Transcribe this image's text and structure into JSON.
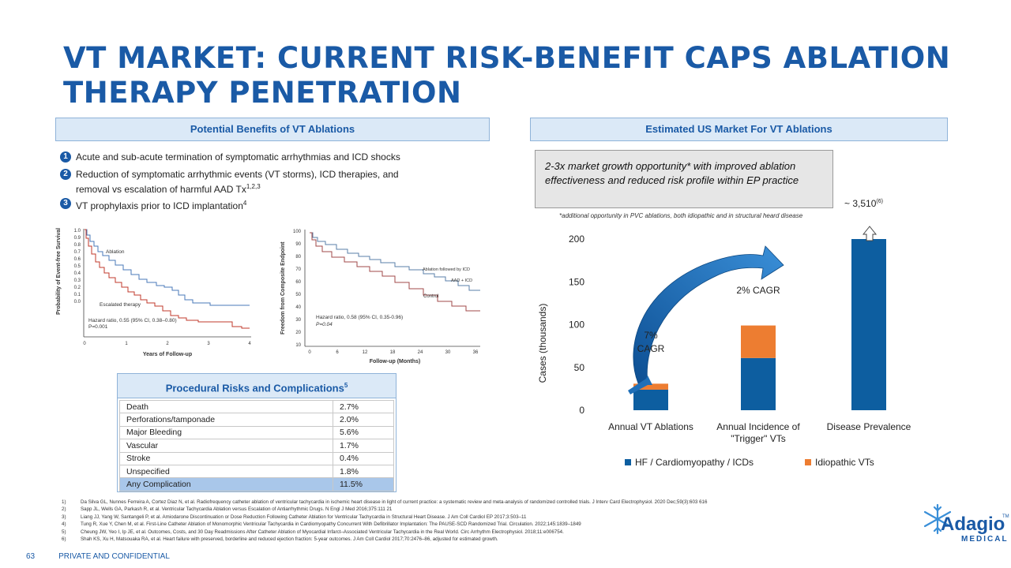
{
  "title": "VT MARKET: CURRENT RISK-BENEFIT CAPS ABLATION THERAPY PENETRATION",
  "left_header": "Potential Benefits of VT Ablations",
  "right_header": "Estimated US Market For VT Ablations",
  "benefits": [
    {
      "num": "1",
      "text": "Acute and sub-acute termination of symptomatic arrhythmias and ICD shocks",
      "sup": ""
    },
    {
      "num": "2",
      "text": "Reduction of symptomatic arrhythmic events (VT storms), ICD therapies, and removal vs escalation of harmful AAD Tx",
      "sup": "1,2,3"
    },
    {
      "num": "3",
      "text": "VT prophylaxis prior to ICD implantation",
      "sup": "4"
    }
  ],
  "km1": {
    "y_title": "Probability of Event-free Survival",
    "x_title": "Years of Follow-up",
    "y_ticks": [
      "1.0",
      "0.9",
      "0.8",
      "0.7",
      "0.6",
      "0.5",
      "0.4",
      "0.3",
      "0.2",
      "0.1",
      "0.0"
    ],
    "x_ticks": [
      "0",
      "1",
      "2",
      "3",
      "4"
    ],
    "label_a": "Ablation",
    "label_b": "Escalated therapy",
    "hr": "Hazard ratio, 0.55 (95% CI, 0.38–0.80)",
    "p": "P=0.001"
  },
  "km2": {
    "y_title": "Freedom from Composite Endpoint",
    "x_title": "Follow-up (Months)",
    "y_ticks": [
      "100",
      "90",
      "80",
      "70",
      "60",
      "50",
      "40",
      "30",
      "20",
      "10"
    ],
    "x_ticks": [
      "0",
      "6",
      "12",
      "18",
      "24",
      "30",
      "36"
    ],
    "label_a": "Ablation followed by ICD",
    "label_a2": "AAD + ICD",
    "label_b": "Control",
    "hr": "Hazard ratio, 0.58 (95% CI, 0.35-0.96)",
    "p": "P=0.04"
  },
  "risks": {
    "title": "Procedural Risks and Complications",
    "title_sup": "5",
    "rows": [
      {
        "label": "Death",
        "value": "2.7%"
      },
      {
        "label": "Perforations/tamponade",
        "value": "2.0%"
      },
      {
        "label": "Major Bleeding",
        "value": "5.6%"
      },
      {
        "label": "Vascular",
        "value": "1.7%"
      },
      {
        "label": "Stroke",
        "value": "0.4%"
      },
      {
        "label": "Unspecified",
        "value": "1.8%"
      },
      {
        "label": "Any Complication",
        "value": "11.5%"
      }
    ]
  },
  "callout": "2-3x market growth opportunity* with improved ablation effectiveness and reduced risk profile within EP practice",
  "callout_note": "*additional opportunity in PVC ablations, both idiopathic and in structural heard disease",
  "chart_data": {
    "type": "bar",
    "stacked": true,
    "categories": [
      "Annual VT Ablations",
      "Annual Incidence of \"Trigger\" VTs",
      "Disease Prevalence"
    ],
    "series": [
      {
        "name": "HF / Cardiomyopathy / ICDs",
        "values": [
          24,
          61,
          200
        ],
        "color": "#0d5ea0"
      },
      {
        "name": "Idiopathic VTs",
        "values": [
          7,
          38,
          0
        ],
        "color": "#ed7d31"
      }
    ],
    "ylabel": "Cases (thousands)",
    "ylim": [
      0,
      200
    ],
    "y_ticks": [
      0,
      50,
      100,
      150,
      200
    ],
    "annotations": {
      "cagr1_line1": "7%",
      "cagr1_line2": "CAGR",
      "cagr2": "2% CAGR",
      "prevalence": "~ 3,510",
      "prevalence_sup": "(6)"
    },
    "legend_position": "bottom"
  },
  "references": [
    {
      "n": "1)",
      "text": "Da Silva GL, Nunnes Ferreira A, Cortez Diaz N, et al. Radiofrequency catheter ablation of ventricular tachycardia in ischemic heart disease in light of current practice: a systematic review and meta-analysis of randomized controlled trials. J Interv Card Electrophysiol. 2020 Dec;59(3):603 616"
    },
    {
      "n": "2)",
      "text": "Sapp JL, Wells GA, Parkash R, et al. Ventricular Tachycardia Ablation versus Escalation of Antiarrhythmic Drugs. N Engl J Med 2016;375:111 21"
    },
    {
      "n": "3)",
      "text": "Liang JJ, Yang W, Santangeli P, et al. Amiodarone Discontinuation or Dose Reduction Following Catheter Ablation for Ventricular Tachycardia in Structural Heart Disease. J Am Coll Cardiol EP 2017;3:503–11"
    },
    {
      "n": "4)",
      "text": "Tung R, Xue Y, Chen M, et al. First-Line Catheter Ablation of Monomorphic Ventricular Tachycardia in Cardiomyopathy Concurrent With Defibrillator Implantation: The PAUSE-SCD Randomized Trial. Circulation. 2022;145:1839–1849"
    },
    {
      "n": "5)",
      "text": "Cheung JW, Yeo I, Ip JE, et al. Outcomes, Costs, and 30 Day Readmissions After Catheter Ablation of Myocardial Infarct–Associated Ventricular Tachycardia in the Real World. Circ Arrhythm Electrophysiol. 2018;11:e006754."
    },
    {
      "n": "6)",
      "text": "Shah KS, Xu H, Matsouaka RA, et al. Heart failure with preserved, borderline and reduced ejection fraction: 5-year outcomes. J Am Coll Cardiol 2017;70:2476–86, adjusted for estimated growth."
    }
  ],
  "footer": {
    "page": "63",
    "confidential": "PRIVATE AND CONFIDENTIAL"
  },
  "logo": {
    "name": "Adagio",
    "sub": "MEDICAL",
    "tm": "TM"
  },
  "colors": {
    "accent": "#1a5aa6",
    "blue_bar": "#0d5ea0",
    "orange_bar": "#ed7d31",
    "header_bg": "#dbe9f7"
  }
}
